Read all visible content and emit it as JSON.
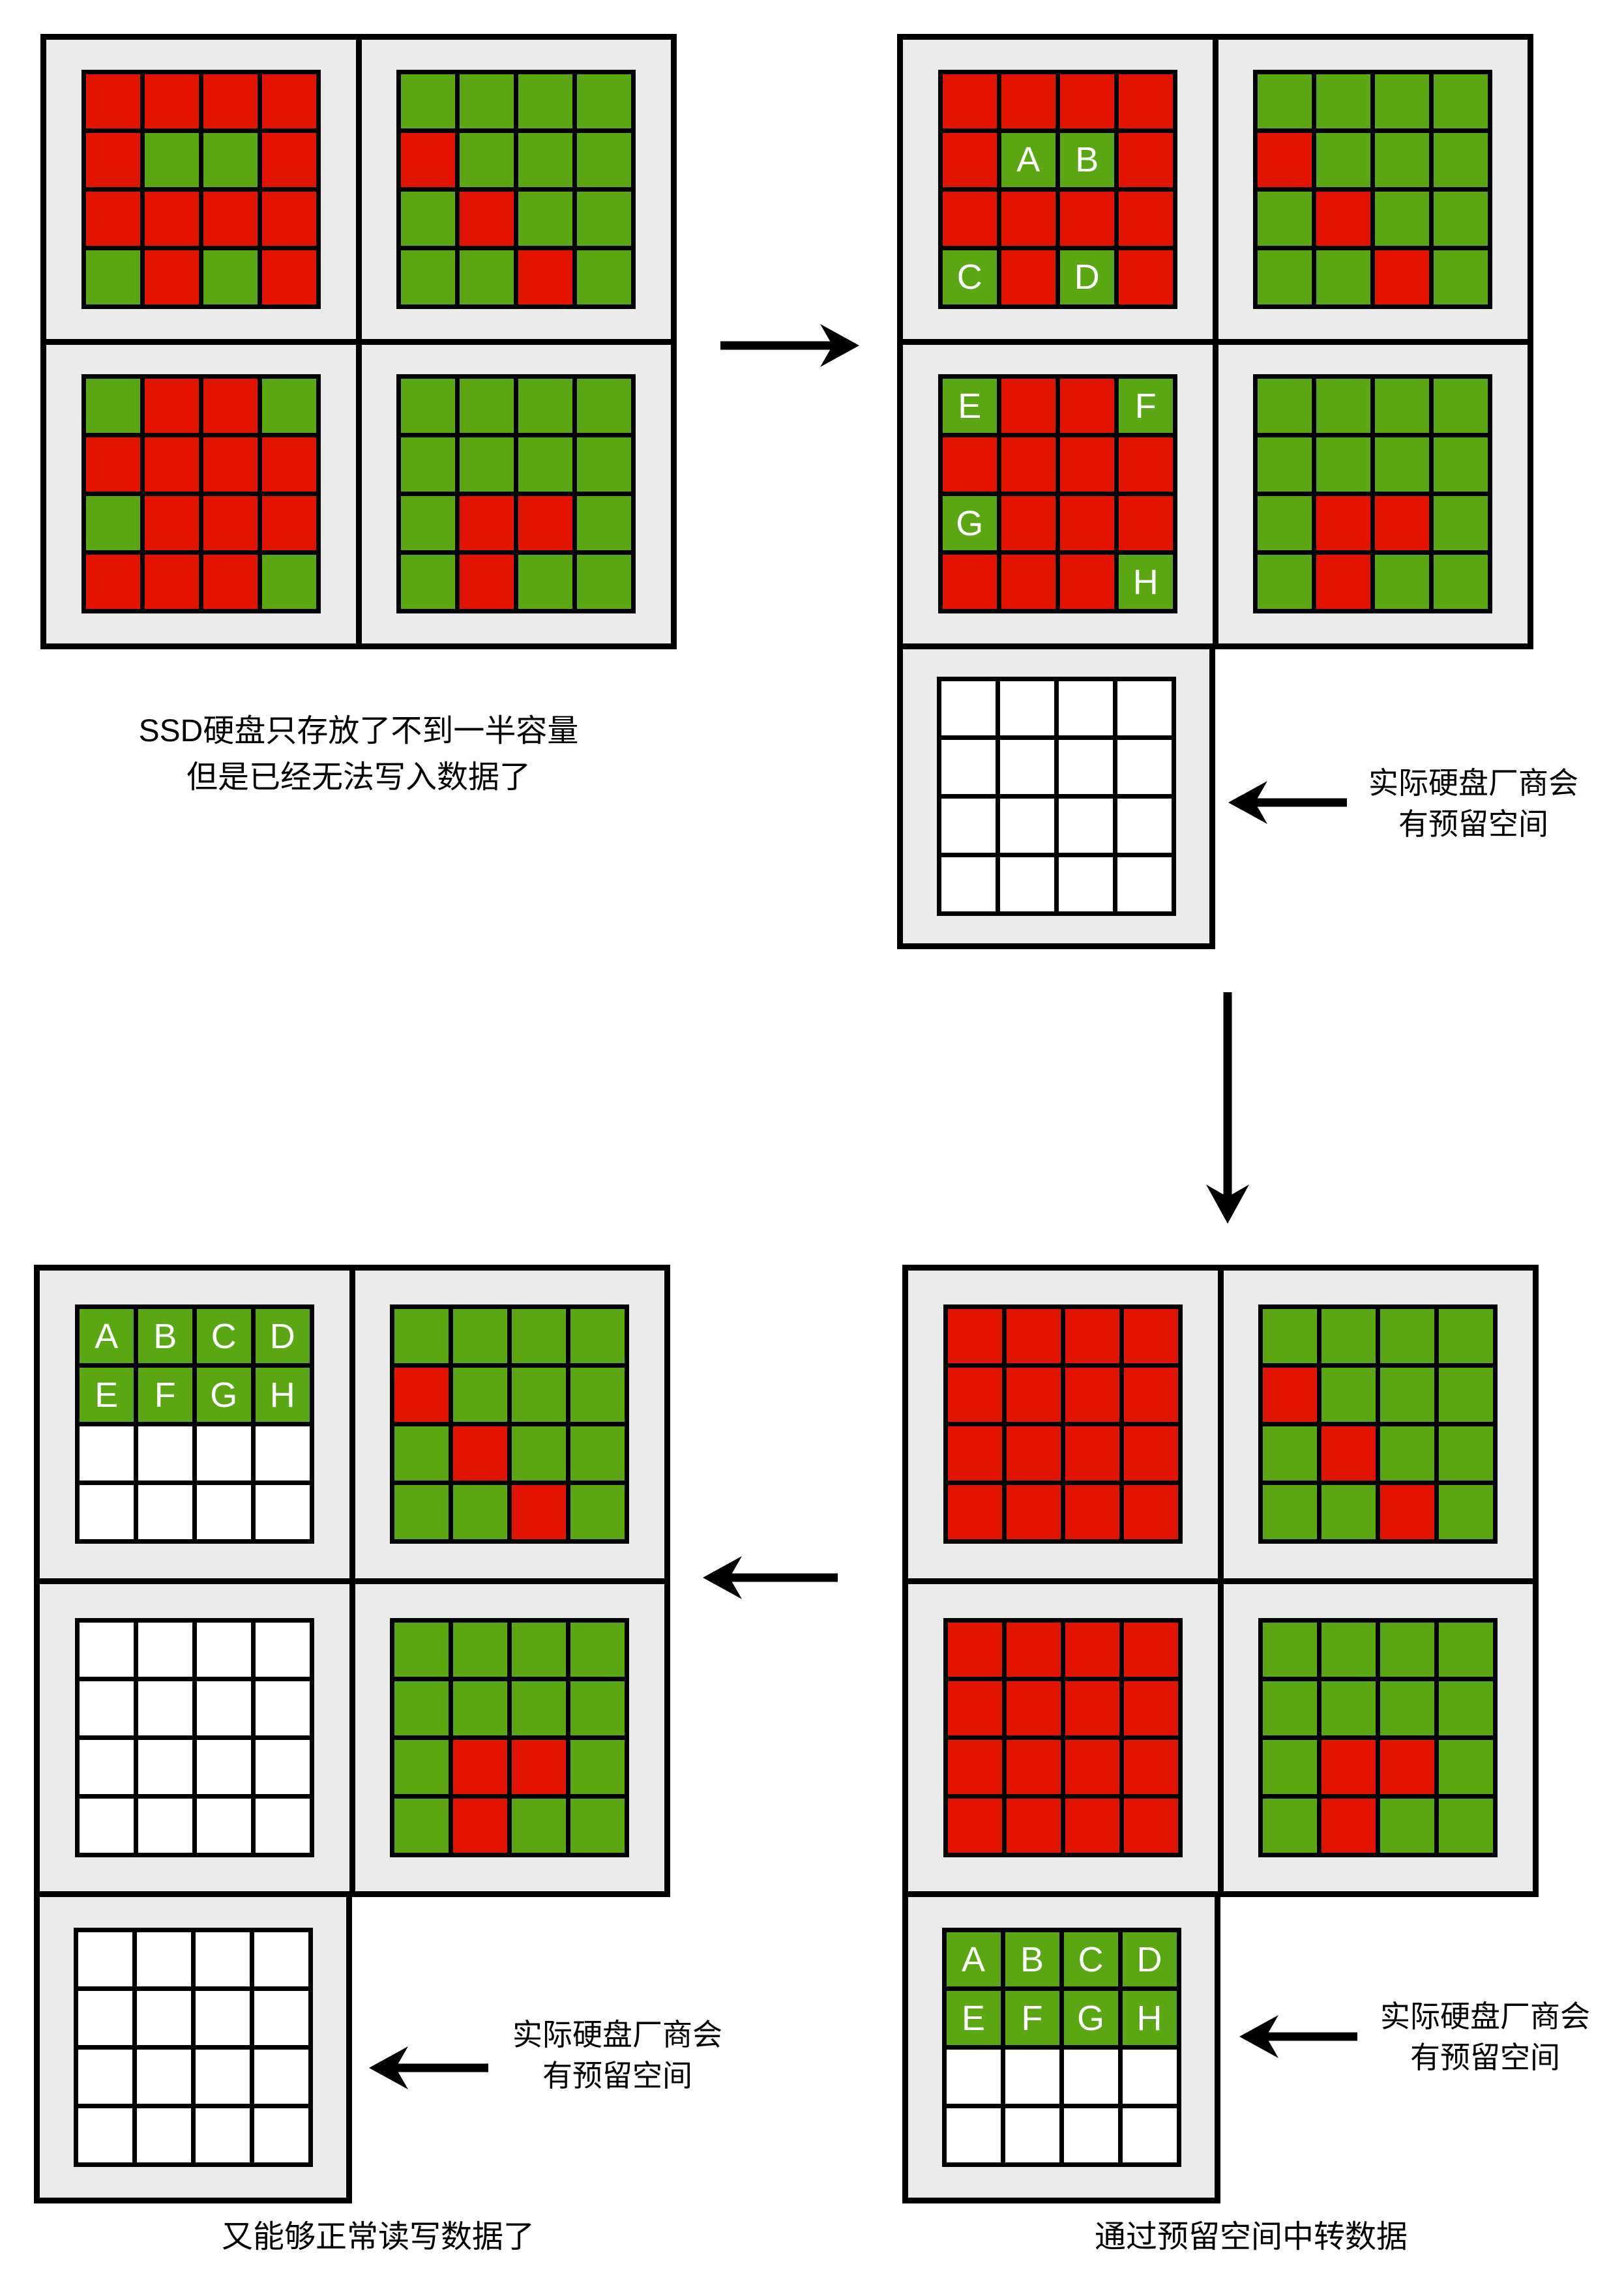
{
  "colors": {
    "red": "#e21400",
    "green": "#5ba613",
    "white": "#ffffff",
    "panel_bg": "#ebebeb",
    "border": "#000000"
  },
  "legend": {
    "R": "red (occupied/invalid block)",
    "G": "green (block)",
    "W": "white (empty block)"
  },
  "letters": [
    "A",
    "B",
    "C",
    "D",
    "E",
    "F",
    "G",
    "H"
  ],
  "captions": {
    "top_left": {
      "line1": "SSD硬盘只存放了不到一半容量",
      "line2": "但是已经无法写入数据了"
    },
    "bottom_left": {
      "line1": "又能够正常读写数据了"
    },
    "bottom_right": {
      "line1": "通过预留空间中转数据"
    }
  },
  "labels": {
    "reserved_space": {
      "line1": "实际硬盘厂商会",
      "line2": "有预留空间"
    }
  },
  "grids": {
    "top_left": [
      [
        "R",
        "R",
        "R",
        "R",
        "R",
        "G",
        "G",
        "R",
        "R",
        "R",
        "R",
        "R",
        "G",
        "R",
        "G",
        "R"
      ],
      [
        "G",
        "G",
        "G",
        "G",
        "R",
        "G",
        "G",
        "G",
        "G",
        "R",
        "G",
        "G",
        "G",
        "G",
        "R",
        "G"
      ],
      [
        "G",
        "R",
        "R",
        "G",
        "R",
        "R",
        "R",
        "R",
        "G",
        "R",
        "R",
        "R",
        "R",
        "R",
        "R",
        "G"
      ],
      [
        "G",
        "G",
        "G",
        "G",
        "G",
        "G",
        "G",
        "G",
        "G",
        "R",
        "R",
        "G",
        "G",
        "R",
        "G",
        "G"
      ]
    ],
    "top_right": [
      [
        "R",
        "R",
        "R",
        "R",
        "R",
        "G:A",
        "G:B",
        "R",
        "R",
        "R",
        "R",
        "R",
        "G:C",
        "R",
        "G:D",
        "R"
      ],
      [
        "G",
        "G",
        "G",
        "G",
        "R",
        "G",
        "G",
        "G",
        "G",
        "R",
        "G",
        "G",
        "G",
        "G",
        "R",
        "G"
      ],
      [
        "G:E",
        "R",
        "R",
        "G:F",
        "R",
        "R",
        "R",
        "R",
        "G:G",
        "R",
        "R",
        "R",
        "R",
        "R",
        "R",
        "G:H"
      ],
      [
        "G",
        "G",
        "G",
        "G",
        "G",
        "G",
        "G",
        "G",
        "G",
        "R",
        "R",
        "G",
        "G",
        "R",
        "G",
        "G"
      ]
    ],
    "top_right_reserved": [
      "W",
      "W",
      "W",
      "W",
      "W",
      "W",
      "W",
      "W",
      "W",
      "W",
      "W",
      "W",
      "W",
      "W",
      "W",
      "W"
    ],
    "bottom_left": [
      [
        "G:A",
        "G:B",
        "G:C",
        "G:D",
        "G:E",
        "G:F",
        "G:G",
        "G:H",
        "W",
        "W",
        "W",
        "W",
        "W",
        "W",
        "W",
        "W"
      ],
      [
        "G",
        "G",
        "G",
        "G",
        "R",
        "G",
        "G",
        "G",
        "G",
        "R",
        "G",
        "G",
        "G",
        "G",
        "R",
        "G"
      ],
      [
        "W",
        "W",
        "W",
        "W",
        "W",
        "W",
        "W",
        "W",
        "W",
        "W",
        "W",
        "W",
        "W",
        "W",
        "W",
        "W"
      ],
      [
        "G",
        "G",
        "G",
        "G",
        "G",
        "G",
        "G",
        "G",
        "G",
        "R",
        "R",
        "G",
        "G",
        "R",
        "G",
        "G"
      ]
    ],
    "bottom_left_reserved": [
      "W",
      "W",
      "W",
      "W",
      "W",
      "W",
      "W",
      "W",
      "W",
      "W",
      "W",
      "W",
      "W",
      "W",
      "W",
      "W"
    ],
    "bottom_right": [
      [
        "R",
        "R",
        "R",
        "R",
        "R",
        "R",
        "R",
        "R",
        "R",
        "R",
        "R",
        "R",
        "R",
        "R",
        "R",
        "R"
      ],
      [
        "G",
        "G",
        "G",
        "G",
        "R",
        "G",
        "G",
        "G",
        "G",
        "R",
        "G",
        "G",
        "G",
        "G",
        "R",
        "G"
      ],
      [
        "R",
        "R",
        "R",
        "R",
        "R",
        "R",
        "R",
        "R",
        "R",
        "R",
        "R",
        "R",
        "R",
        "R",
        "R",
        "R"
      ],
      [
        "G",
        "G",
        "G",
        "G",
        "G",
        "G",
        "G",
        "G",
        "G",
        "R",
        "R",
        "G",
        "G",
        "R",
        "G",
        "G"
      ]
    ],
    "bottom_right_reserved": [
      "G:A",
      "G:B",
      "G:C",
      "G:D",
      "G:E",
      "G:F",
      "G:G",
      "G:H",
      "W",
      "W",
      "W",
      "W",
      "W",
      "W",
      "W",
      "W"
    ]
  }
}
